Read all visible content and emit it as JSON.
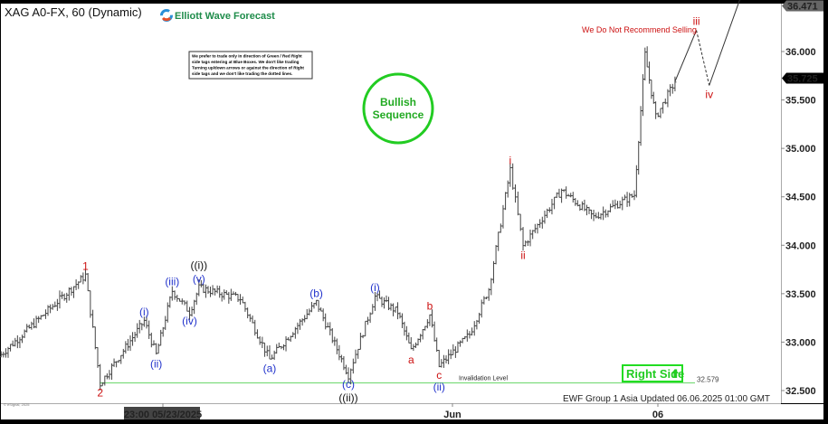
{
  "header": {
    "symbol_title": "XAG A0-FX, 60 (Dynamic)",
    "brand": "Elliott Wave Forecast",
    "disclaimer_lines": [
      "We prefer to trade only in direction of Green / Red Right",
      "side tags entering at Blue Boxes. We don't like trading",
      "Turning up/down arrows or against the direction of Right",
      "side tags and we don't like trading the dotted lines."
    ]
  },
  "annotations": {
    "bullish_circle": "Bullish\nSequence",
    "bullish_line1": "Bullish",
    "bullish_line2": "Sequence",
    "not_recommend": "We Do Not Recommend Selling",
    "invalidation_label": "Invalidation Level",
    "invalidation_value": "32.579",
    "right_side": "Right Side",
    "updated": "EWF Group 1 Asia Updated 06.06.2025 01:00 GMT",
    "copyright": "© eSignal, 2025",
    "dyn": "Dyn"
  },
  "colors": {
    "bars": "#444444",
    "invalidation": "#7ddc7d",
    "bullish": "#22cc22",
    "red_label": "#cc1111",
    "blue_label": "#2233cc",
    "black_label": "#111111",
    "last_price_tag": "#000000",
    "high_tag": "#666666"
  },
  "chart_data": {
    "type": "ohlc",
    "symbol": "XAG A0-FX",
    "interval": "60",
    "ylim": [
      32.4,
      36.5
    ],
    "y_ticks": [
      "36.000",
      "35.500",
      "35.000",
      "34.500",
      "34.000",
      "33.500",
      "33.000",
      "32.500"
    ],
    "y_tick_values": [
      36.0,
      35.5,
      35.0,
      34.5,
      34.0,
      33.5,
      33.0,
      32.5
    ],
    "x_ticks": [
      "23:00 05/23/2025",
      "Jun",
      "06"
    ],
    "last_price": "35.725",
    "high_price": "36.471",
    "invalidation_level": 32.579,
    "price_path": [
      {
        "t": "05/18 20:00",
        "p": 32.85
      },
      {
        "t": "05/21 13:00",
        "p": 33.69
      },
      {
        "t": "05/22 00:00",
        "p": 32.57
      },
      {
        "t": "05/23 09:00",
        "p": 33.22
      },
      {
        "t": "05/23 18:00",
        "p": 32.87
      },
      {
        "t": "05/24 06:00",
        "p": 33.53
      },
      {
        "t": "05/24 19:00",
        "p": 33.31
      },
      {
        "t": "05/25 02:00",
        "p": 33.56
      },
      {
        "t": "05/26 09:00",
        "p": 33.45
      },
      {
        "t": "05/27 07:00",
        "p": 32.82
      },
      {
        "t": "05/28 18:00",
        "p": 33.41
      },
      {
        "t": "05/29 18:00",
        "p": 32.66
      },
      {
        "t": "05/30 14:00",
        "p": 33.47
      },
      {
        "t": "05/31 07:00",
        "p": 33.31
      },
      {
        "t": "05/31 17:00",
        "p": 32.91
      },
      {
        "t": "06/01 07:00",
        "p": 33.28
      },
      {
        "t": "06/01 14:00",
        "p": 32.75
      },
      {
        "t": "06/02 08:00",
        "p": 33.08
      },
      {
        "t": "06/02 17:00",
        "p": 33.55
      },
      {
        "t": "06/03 03:00",
        "p": 34.78
      },
      {
        "t": "06/03 09:00",
        "p": 33.99
      },
      {
        "t": "06/04 03:00",
        "p": 34.57
      },
      {
        "t": "06/04 18:00",
        "p": 34.29
      },
      {
        "t": "06/05 13:00",
        "p": 34.52
      },
      {
        "t": "06/05 18:00",
        "p": 35.97
      },
      {
        "t": "06/05 23:00",
        "p": 35.32
      },
      {
        "t": "06/06 08:00",
        "p": 35.69
      }
    ],
    "projection": [
      {
        "t": "06/06 08:00",
        "p": 35.69,
        "style": "solid"
      },
      {
        "t": "06/06 18:00",
        "p": 36.22,
        "style": "dashed"
      },
      {
        "t": "06/07 00:00",
        "p": 35.65,
        "style": "solid"
      },
      {
        "t": "06/07 15:00",
        "p": 36.58,
        "style": "end"
      }
    ],
    "wave_labels": [
      {
        "text": "1",
        "t": "05/21 13:00",
        "p": 33.69,
        "pos": "above",
        "color": "red"
      },
      {
        "text": "2",
        "t": "05/22 00:00",
        "p": 32.57,
        "pos": "below",
        "color": "red"
      },
      {
        "text": "(i)",
        "t": "05/23 09:00",
        "p": 33.22,
        "pos": "above",
        "color": "blue"
      },
      {
        "text": "(ii)",
        "t": "05/23 18:00",
        "p": 32.87,
        "pos": "below",
        "color": "blue"
      },
      {
        "text": "(iii)",
        "t": "05/24 06:00",
        "p": 33.53,
        "pos": "above",
        "color": "blue"
      },
      {
        "text": "(iv)",
        "t": "05/24 19:00",
        "p": 33.31,
        "pos": "below",
        "color": "blue"
      },
      {
        "text": "(v)",
        "t": "05/25 02:00",
        "p": 33.56,
        "pos": "above",
        "color": "blue"
      },
      {
        "text": "((i))",
        "t": "05/25 02:00",
        "p": 33.7,
        "pos": "above",
        "color": "black"
      },
      {
        "text": "(a)",
        "t": "05/27 07:00",
        "p": 32.82,
        "pos": "below",
        "color": "blue"
      },
      {
        "text": "(b)",
        "t": "05/28 18:00",
        "p": 33.41,
        "pos": "above",
        "color": "blue"
      },
      {
        "text": "(c)",
        "t": "05/29 18:00",
        "p": 32.66,
        "pos": "below",
        "color": "blue"
      },
      {
        "text": "((ii))",
        "t": "05/29 18:00",
        "p": 32.52,
        "pos": "below",
        "color": "black"
      },
      {
        "text": "(i)",
        "t": "05/30 14:00",
        "p": 33.47,
        "pos": "above",
        "color": "blue"
      },
      {
        "text": "a",
        "t": "05/31 17:00",
        "p": 32.91,
        "pos": "below",
        "color": "red"
      },
      {
        "text": "b",
        "t": "06/01 07:00",
        "p": 33.28,
        "pos": "above",
        "color": "red"
      },
      {
        "text": "c",
        "t": "06/01 14:00",
        "p": 32.75,
        "pos": "below",
        "color": "red"
      },
      {
        "text": "(ii)",
        "t": "06/01 14:00",
        "p": 32.63,
        "pos": "below",
        "color": "blue"
      },
      {
        "text": "i",
        "t": "06/03 03:00",
        "p": 34.78,
        "pos": "above",
        "color": "red"
      },
      {
        "text": "ii",
        "t": "06/03 09:00",
        "p": 33.99,
        "pos": "below",
        "color": "red"
      },
      {
        "text": "iii",
        "t": "06/06 18:00",
        "p": 36.22,
        "pos": "above",
        "color": "red"
      },
      {
        "text": "iv",
        "t": "06/07 00:00",
        "p": 35.65,
        "pos": "below",
        "color": "red"
      }
    ]
  }
}
